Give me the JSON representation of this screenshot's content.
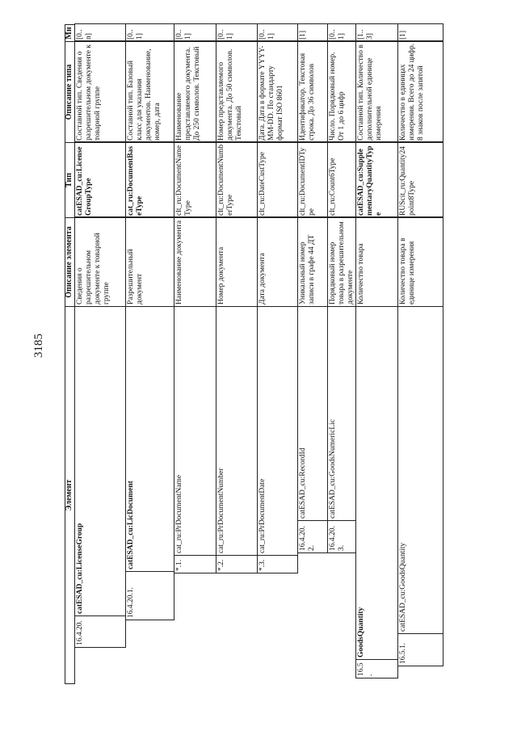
{
  "page_number": "3185",
  "headers": {
    "element": "Элемент",
    "element_desc": "Описание элемента",
    "type": "Тип",
    "type_desc": "Описание типа",
    "mult": "Мн."
  },
  "rows": [
    {
      "num": "16.4.20.",
      "name": "catESAD_cu:LicenseGroup",
      "name_bold": true,
      "desc": "Сведения о разрешительном документе к товарной группе",
      "type": "catESAD_cu:LicenseGroupType",
      "type_bold": true,
      "type_desc": "Составной тип. Сведения о разрешительном документе к товарной группе",
      "mult": "[0..n]"
    },
    {
      "num": "16.4.20.1.",
      "name": "catESAD_cu:LicDocument",
      "name_bold": true,
      "desc": "Разрешительный документ",
      "type": "cat_ru:DocumentBaseType",
      "type_bold": true,
      "type_desc": "Составной тип. Базовый класс для указания документов. Наименование, номер, дата",
      "mult": "[0..1]"
    },
    {
      "num": "*.1.",
      "name": "cat_ru:PrDocumentName",
      "name_bold": false,
      "desc": "Наименование документа",
      "type": "clt_ru:DocumentNameType",
      "type_bold": false,
      "type_desc": "Наименование представляемого документа. До 250 символов. Текстовый",
      "mult": "[0..1]"
    },
    {
      "num": "*.2.",
      "name": "cat_ru:PrDocumentNumber",
      "name_bold": false,
      "desc": "Номер документа",
      "type": "clt_ru:DocumentNumberType",
      "type_bold": false,
      "type_desc": "Номер представляемого документа. До 50 символов. Текстовый",
      "mult": "[0..1]"
    },
    {
      "num": "*.3.",
      "name": "cat_ru:PrDocumentDate",
      "name_bold": false,
      "desc": "Дата документа",
      "type": "clt_ru:DateCustType",
      "type_bold": false,
      "type_desc": "Дата. Дата в формате YYYY-MM-DD. По стандарту формат ISO 8601",
      "mult": "[0..1]"
    },
    {
      "num": "16.4.20.2.",
      "name": "catESAD_cu:RecordId",
      "name_bold": false,
      "desc": "Уникальный номер записи в графе 44 ДТ",
      "type": "clt_ru:DocumentIDType",
      "type_bold": false,
      "type_desc": "Идентификатор. Текстовая строка. До 36 символов",
      "mult": "[1]"
    },
    {
      "num": "16.4.20.3.",
      "name": "catESAD_cu:GoodsNumericLic",
      "name_bold": false,
      "desc": "Порядковый номер товара в разрешительном документе",
      "type": "clt_ru:Count6Type",
      "type_bold": false,
      "type_desc": "Число. Порядковый номер. От 1 до 6 цифр",
      "mult": "[0..1]"
    },
    {
      "num": "16.5.",
      "name": "GoodsQuantity",
      "name_bold": true,
      "desc": "Количество товара",
      "type": "catESAD_cu:SupplementaryQuantityType",
      "type_bold": true,
      "type_desc": "Составной тип. Количество в дополнительной единице измерения",
      "mult": "[1..3]"
    },
    {
      "num": "16.5.1.",
      "name": "catESAD_cu:GoodsQuantity",
      "name_bold": false,
      "desc": "Количество товара в единице измерения",
      "type": "RUScit_ru:Quantity24point8Type",
      "type_bold": false,
      "type_desc": "Количество в единицах измерения. Всего до 24 цифр. 8 знаков после запятой",
      "mult": "[1]"
    }
  ]
}
